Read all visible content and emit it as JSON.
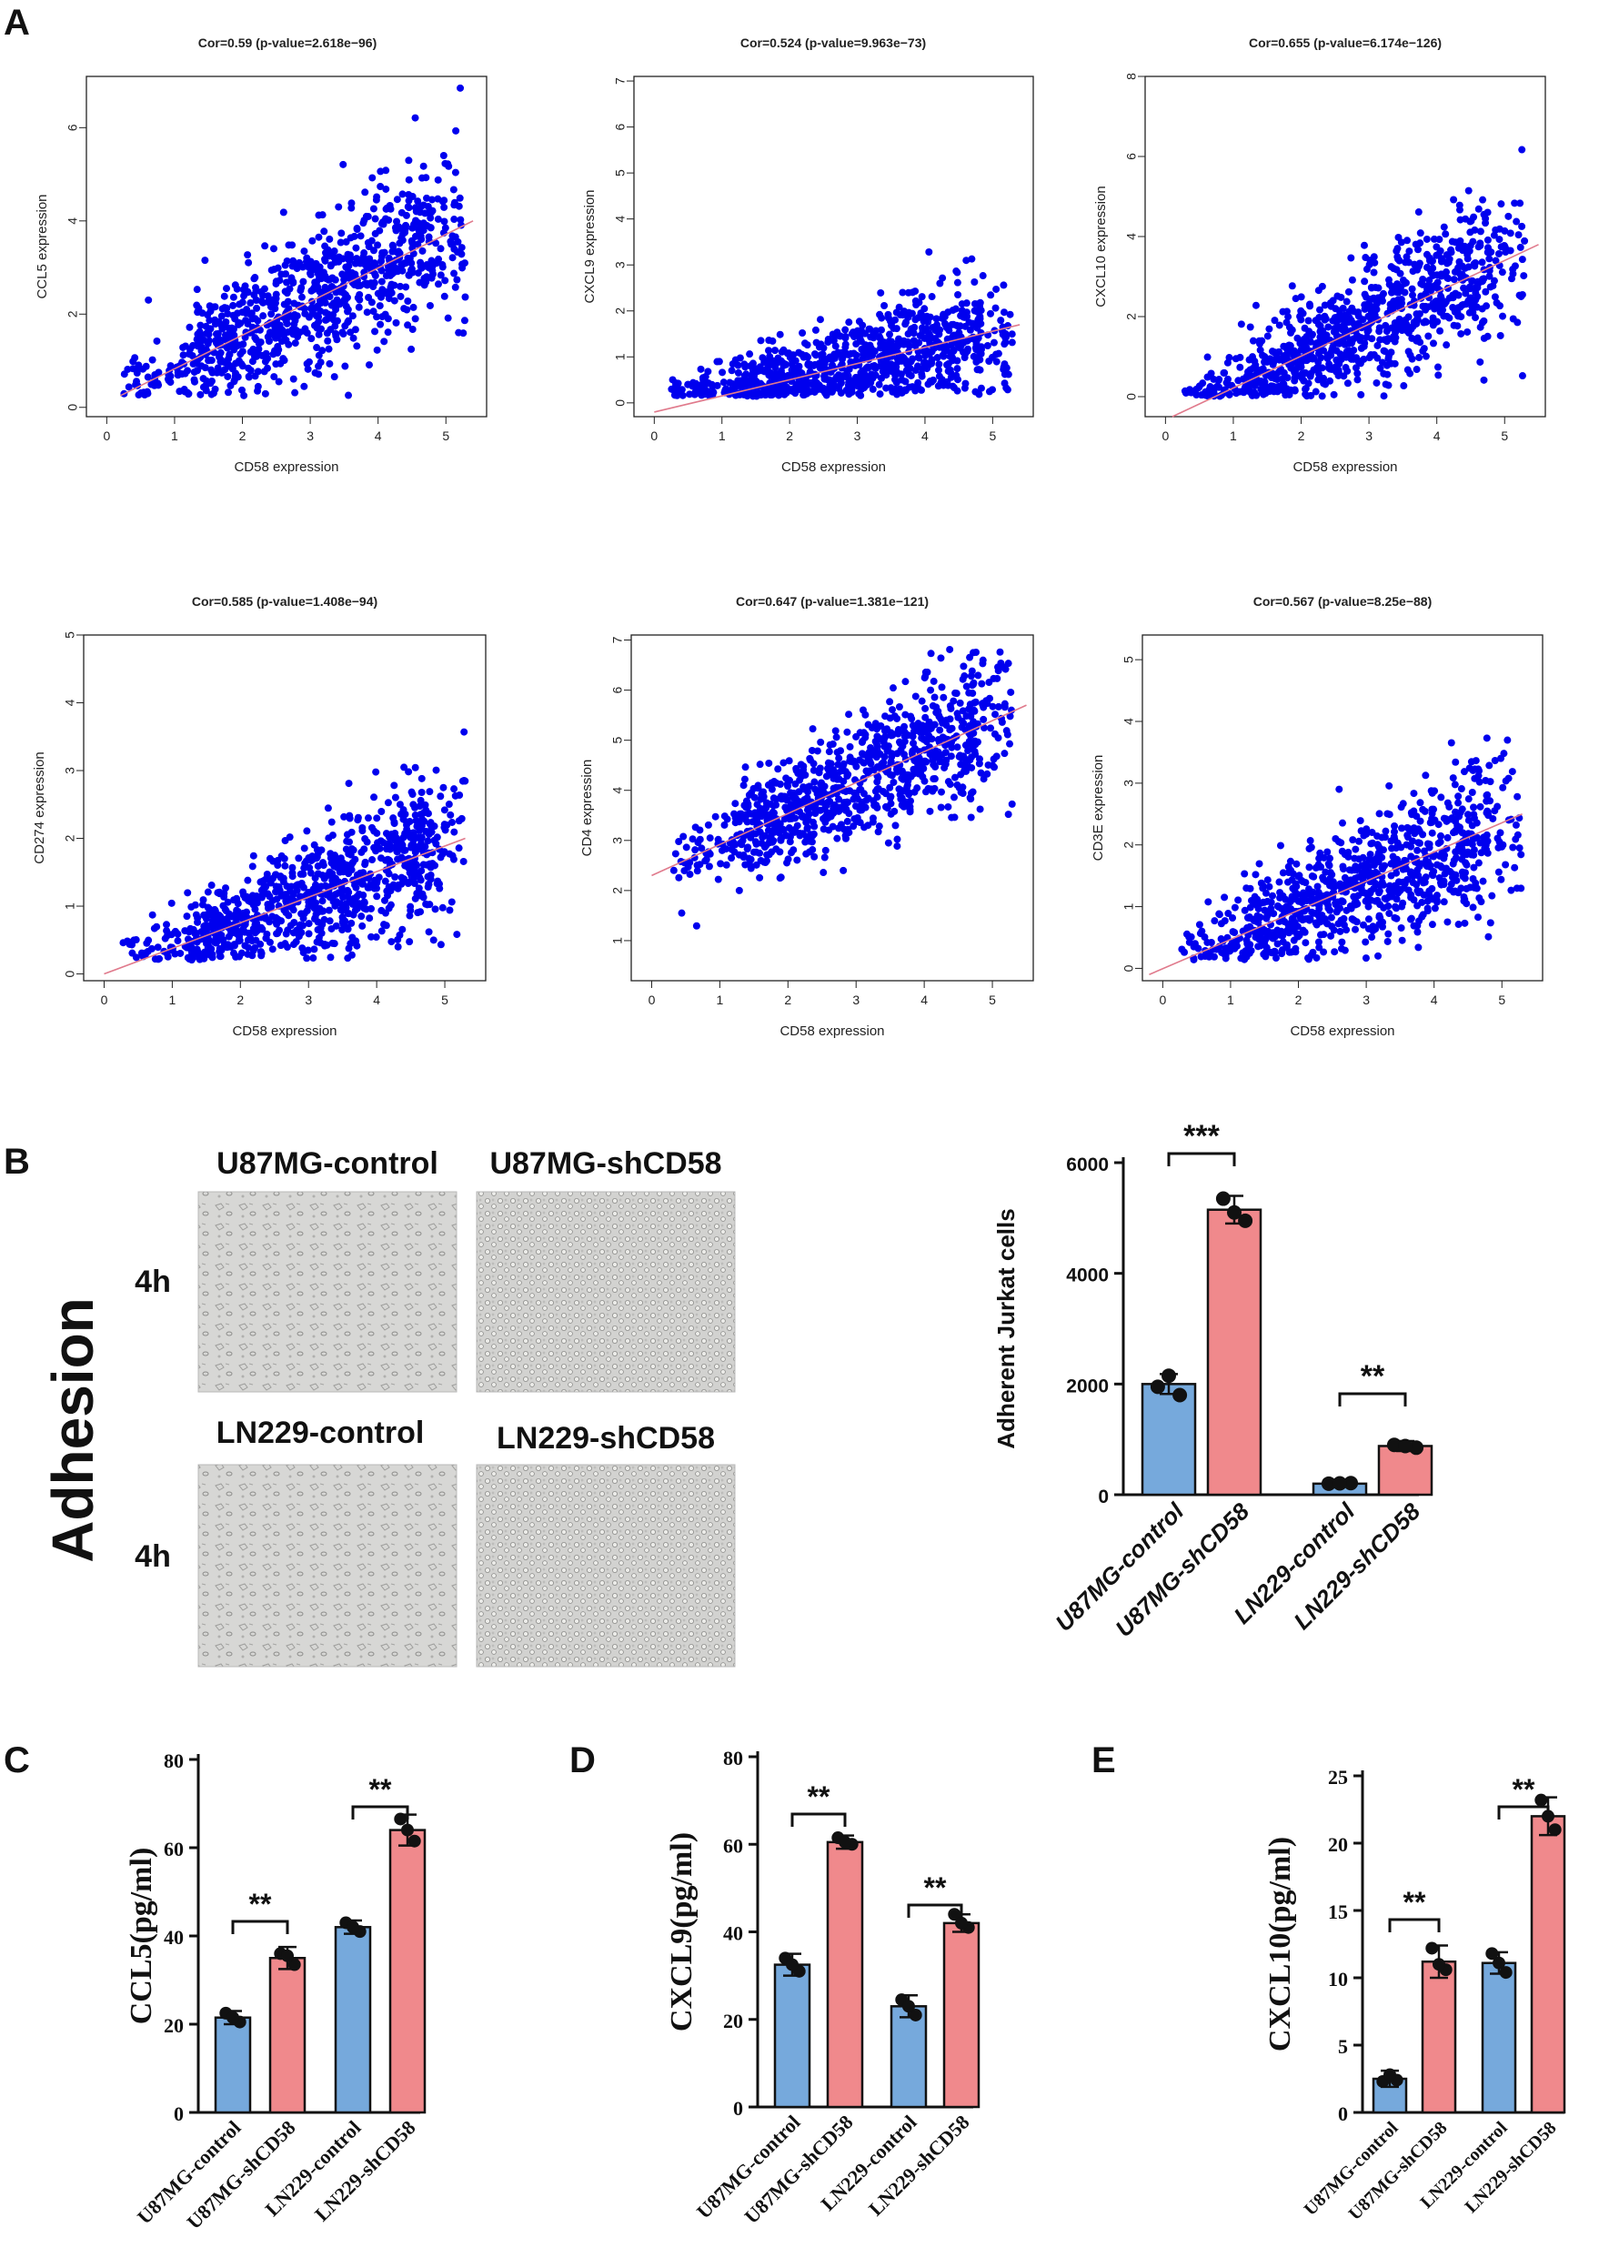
{
  "panel_labels": {
    "a": "A",
    "b": "B",
    "c": "C",
    "d": "D",
    "e": "E"
  },
  "photos": {
    "side_label": "Adhesion",
    "time_label": "4h",
    "titles": [
      "U87MG-control",
      "U87MG-shCD58",
      "LN229-control",
      "LN229-shCD58"
    ]
  },
  "colors": {
    "blue": "#0000ee",
    "line": "#e07a8c",
    "bar_blue": "#76a9dc",
    "bar_red": "#f0898c"
  },
  "chart_data": [
    {
      "type": "scatter",
      "id": "A1",
      "title": "Cor=0.59 (p-value=2.618e−96)",
      "xlabel": "CD58 expression",
      "ylabel": "CCL5 expression",
      "xlim": [
        -0.3,
        5.6
      ],
      "ylim": [
        -0.2,
        7.1
      ],
      "xticks": [
        0,
        1,
        2,
        3,
        4,
        5
      ],
      "yticks": [
        0,
        2,
        4,
        6
      ],
      "fit": [
        [
          0.2,
          0.25
        ],
        [
          5.4,
          4.0
        ]
      ],
      "seed": 11,
      "noise": 1.0,
      "xmin": 0.25,
      "xmax": 5.3
    },
    {
      "type": "scatter",
      "id": "A2",
      "title": "Cor=0.524 (p-value=9.963e−73)",
      "xlabel": "CD58 expression",
      "ylabel": "CXCL9 expression",
      "xlim": [
        -0.3,
        5.6
      ],
      "ylim": [
        -0.3,
        7.1
      ],
      "xticks": [
        0,
        1,
        2,
        3,
        4,
        5
      ],
      "yticks": [
        0,
        1,
        2,
        3,
        4,
        5,
        6,
        7
      ],
      "fit": [
        [
          0.0,
          -0.2
        ],
        [
          5.4,
          1.7
        ]
      ],
      "seed": 23,
      "noise": 0.7,
      "xmin": 0.25,
      "xmax": 5.3
    },
    {
      "type": "scatter",
      "id": "A3",
      "title": "Cor=0.655 (p-value=6.174e−126)",
      "xlabel": "CD58 expression",
      "ylabel": "CXCL10 expression",
      "xlim": [
        -0.3,
        5.6
      ],
      "ylim": [
        -0.5,
        8.0
      ],
      "xticks": [
        0,
        1,
        2,
        3,
        4,
        5
      ],
      "yticks": [
        0,
        2,
        4,
        6,
        8
      ],
      "fit": [
        [
          0.1,
          -0.5
        ],
        [
          5.5,
          3.8
        ]
      ],
      "seed": 37,
      "noise": 1.0,
      "xmin": 0.25,
      "xmax": 5.3
    },
    {
      "type": "scatter",
      "id": "A4",
      "title": "Cor=0.585 (p-value=1.408e−94)",
      "xlabel": "CD58 expression",
      "ylabel": "CD274 expression",
      "xlim": [
        -0.3,
        5.6
      ],
      "ylim": [
        -0.1,
        5.0
      ],
      "xticks": [
        0,
        1,
        2,
        3,
        4,
        5
      ],
      "yticks": [
        0,
        1,
        2,
        3,
        4,
        5
      ],
      "fit": [
        [
          0.0,
          0.0
        ],
        [
          5.3,
          2.0
        ]
      ],
      "seed": 41,
      "noise": 0.6,
      "xmin": 0.25,
      "xmax": 5.3
    },
    {
      "type": "scatter",
      "id": "A5",
      "title": "Cor=0.647 (p-value=1.381e−121)",
      "xlabel": "CD58 expression",
      "ylabel": "CD4 expression",
      "xlim": [
        -0.3,
        5.6
      ],
      "ylim": [
        0.2,
        7.1
      ],
      "xticks": [
        0,
        1,
        2,
        3,
        4,
        5
      ],
      "yticks": [
        1,
        2,
        3,
        4,
        5,
        6,
        7
      ],
      "fit": [
        [
          0.0,
          2.3
        ],
        [
          5.5,
          5.7
        ]
      ],
      "seed": 53,
      "noise": 0.8,
      "xmin": 0.25,
      "xmax": 5.3
    },
    {
      "type": "scatter",
      "id": "A6",
      "title": "Cor=0.567 (p-value=8.25e−88)",
      "xlabel": "CD58 expression",
      "ylabel": "CD3E expression",
      "xlim": [
        -0.3,
        5.6
      ],
      "ylim": [
        -0.2,
        5.4
      ],
      "xticks": [
        0,
        1,
        2,
        3,
        4,
        5
      ],
      "yticks": [
        0,
        1,
        2,
        3,
        4,
        5
      ],
      "fit": [
        [
          -0.2,
          -0.1
        ],
        [
          5.3,
          2.5
        ]
      ],
      "seed": 67,
      "noise": 0.7,
      "xmin": 0.25,
      "xmax": 5.3
    },
    {
      "type": "bar",
      "id": "B",
      "title": "",
      "ylabel": "Adherent Jurkat cells",
      "ylim": [
        0,
        6000
      ],
      "yticks": [
        0,
        2000,
        4000,
        6000
      ],
      "categories": [
        "U87MG-control",
        "U87MG-shCD58",
        "LN229-control",
        "LN229-shCD58"
      ],
      "values": [
        2000,
        5150,
        200,
        880
      ],
      "errors": [
        180,
        250,
        40,
        90
      ],
      "points": [
        [
          1950,
          1800,
          2150
        ],
        [
          5350,
          4950,
          5100
        ],
        [
          200,
          210,
          205
        ],
        [
          900,
          850,
          880
        ]
      ],
      "significance": [
        {
          "pair": [
            0,
            1
          ],
          "label": "***"
        },
        {
          "pair": [
            2,
            3
          ],
          "label": "**"
        }
      ]
    },
    {
      "type": "bar",
      "id": "C",
      "title": "",
      "ylabel": "CCL5(pg/ml)",
      "ylim": [
        0,
        80
      ],
      "yticks": [
        0,
        20,
        40,
        60,
        80
      ],
      "categories": [
        "U87MG-control",
        "U87MG-shCD58",
        "LN229-control",
        "LN229-shCD58"
      ],
      "values": [
        21.5,
        35,
        42,
        64
      ],
      "errors": [
        1.5,
        2.5,
        1.5,
        3.5
      ],
      "points": [
        [
          22.5,
          20.5,
          21.5
        ],
        [
          36,
          33.5,
          35.5
        ],
        [
          43,
          41,
          42
        ],
        [
          66.5,
          61.5,
          64
        ]
      ],
      "significance": [
        {
          "pair": [
            0,
            1
          ],
          "label": "**"
        },
        {
          "pair": [
            2,
            3
          ],
          "label": "**"
        }
      ]
    },
    {
      "type": "bar",
      "id": "D",
      "title": "",
      "ylabel": "CXCL9(pg/ml)",
      "ylim": [
        0,
        80
      ],
      "yticks": [
        0,
        20,
        40,
        60,
        80
      ],
      "categories": [
        "U87MG-control",
        "U87MG-shCD58",
        "LN229-control",
        "LN229-shCD58"
      ],
      "values": [
        32.5,
        60.5,
        23,
        42
      ],
      "errors": [
        2.5,
        1.5,
        2.5,
        2
      ],
      "points": [
        [
          34,
          31,
          32.5
        ],
        [
          61.5,
          60,
          60.5
        ],
        [
          24.5,
          21,
          23
        ],
        [
          44,
          41,
          42
        ]
      ],
      "significance": [
        {
          "pair": [
            0,
            1
          ],
          "label": "**"
        },
        {
          "pair": [
            2,
            3
          ],
          "label": "**"
        }
      ]
    },
    {
      "type": "bar",
      "id": "E",
      "title": "",
      "ylabel": "CXCL10(pg/ml)",
      "ylim": [
        0,
        25
      ],
      "yticks": [
        0,
        5,
        10,
        15,
        20,
        25
      ],
      "categories": [
        "U87MG-control",
        "U87MG-shCD58",
        "LN229-control",
        "LN229-shCD58"
      ],
      "values": [
        2.5,
        11.2,
        11.1,
        22
      ],
      "errors": [
        0.6,
        1.2,
        0.8,
        1.4
      ],
      "points": [
        [
          2.3,
          2.4,
          2.8
        ],
        [
          12.2,
          10.6,
          11.0
        ],
        [
          11.8,
          10.4,
          11.1
        ],
        [
          23.2,
          21.0,
          22.0
        ]
      ],
      "significance": [
        {
          "pair": [
            0,
            1
          ],
          "label": "**"
        },
        {
          "pair": [
            2,
            3
          ],
          "label": "**"
        }
      ]
    }
  ]
}
